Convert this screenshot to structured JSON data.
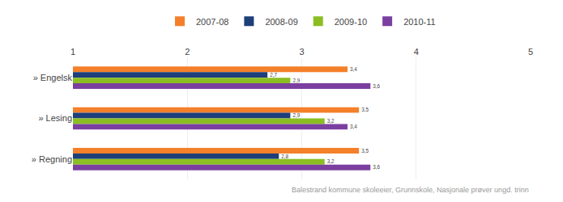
{
  "chart_data": {
    "type": "bar",
    "orientation": "horizontal",
    "categories": [
      "» Engelsk",
      "» Lesing",
      "» Regning"
    ],
    "series": [
      {
        "name": "2007-08",
        "color": "#F4802A",
        "values": [
          3.4,
          3.5,
          3.5
        ],
        "value_labels": [
          "3,4",
          "3,5",
          "3,5"
        ]
      },
      {
        "name": "2008-09",
        "color": "#1E3F7A",
        "values": [
          2.7,
          2.9,
          2.8
        ],
        "value_labels": [
          "2,7",
          "2,9",
          "2,8"
        ]
      },
      {
        "name": "2009-10",
        "color": "#8BBE22",
        "values": [
          2.9,
          3.2,
          3.2
        ],
        "value_labels": [
          "2,9",
          "3,2",
          "3,2"
        ]
      },
      {
        "name": "2010-11",
        "color": "#7B3FA0",
        "values": [
          3.6,
          3.4,
          3.6
        ],
        "value_labels": [
          "3,6",
          "3,4",
          "3,6"
        ]
      }
    ],
    "xlim": [
      1,
      5
    ],
    "xticks": [
      1,
      2,
      3,
      4,
      5
    ],
    "grid": true,
    "legend": "top",
    "data_labels": true,
    "annotations": [
      "Balestrand kommune skoleeier, Grunnskole, Nasjonale prøver ungd. trinn"
    ]
  }
}
